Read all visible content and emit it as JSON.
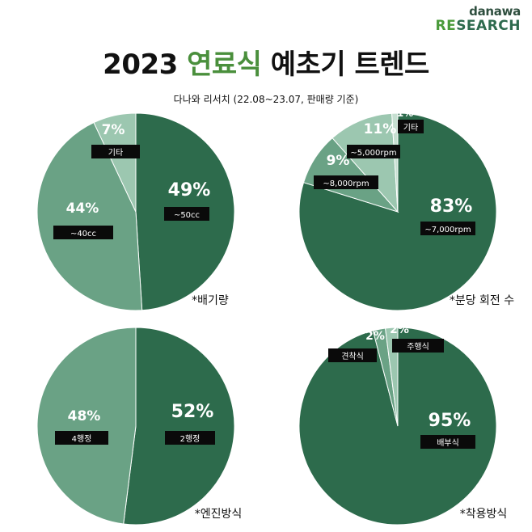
{
  "brand": {
    "top": "danawa",
    "re": "RE",
    "rest": "SEARCH"
  },
  "title": {
    "prefix": "2023 ",
    "highlight": "연료식",
    "suffix": " 예초기 트렌드"
  },
  "subtitle": "다나와 리서치 (22.08~23.07, 판매량 기준)",
  "colors": {
    "dark": "#2d6b4c",
    "mid": "#6aa285",
    "light": "#9cc7b0",
    "lightest": "#c6dfd1"
  },
  "chart_data": [
    {
      "type": "pie",
      "title": "*배기량",
      "slices": [
        {
          "label": "~50cc",
          "value": 49,
          "display": "49%"
        },
        {
          "label": "~40cc",
          "value": 44,
          "display": "44%"
        },
        {
          "label": "기타",
          "value": 7,
          "display": "7%"
        }
      ]
    },
    {
      "type": "pie",
      "title": "*분당 회전 수",
      "slices": [
        {
          "label": "~7,000rpm",
          "value": 83,
          "display": "83%"
        },
        {
          "label": "~8,000rpm",
          "value": 9,
          "display": "9%"
        },
        {
          "label": "~5,000rpm",
          "value": 11,
          "display": "11%"
        },
        {
          "label": "기타",
          "value": 1,
          "display": "1%"
        }
      ]
    },
    {
      "type": "pie",
      "title": "*엔진방식",
      "slices": [
        {
          "label": "2행정",
          "value": 52,
          "display": "52%"
        },
        {
          "label": "4행정",
          "value": 48,
          "display": "48%"
        }
      ]
    },
    {
      "type": "pie",
      "title": "*착용방식",
      "slices": [
        {
          "label": "배부식",
          "value": 95,
          "display": "95%"
        },
        {
          "label": "견착식",
          "value": 2,
          "display": "2%"
        },
        {
          "label": "주행식",
          "value": 2,
          "display": "2%"
        }
      ]
    }
  ]
}
